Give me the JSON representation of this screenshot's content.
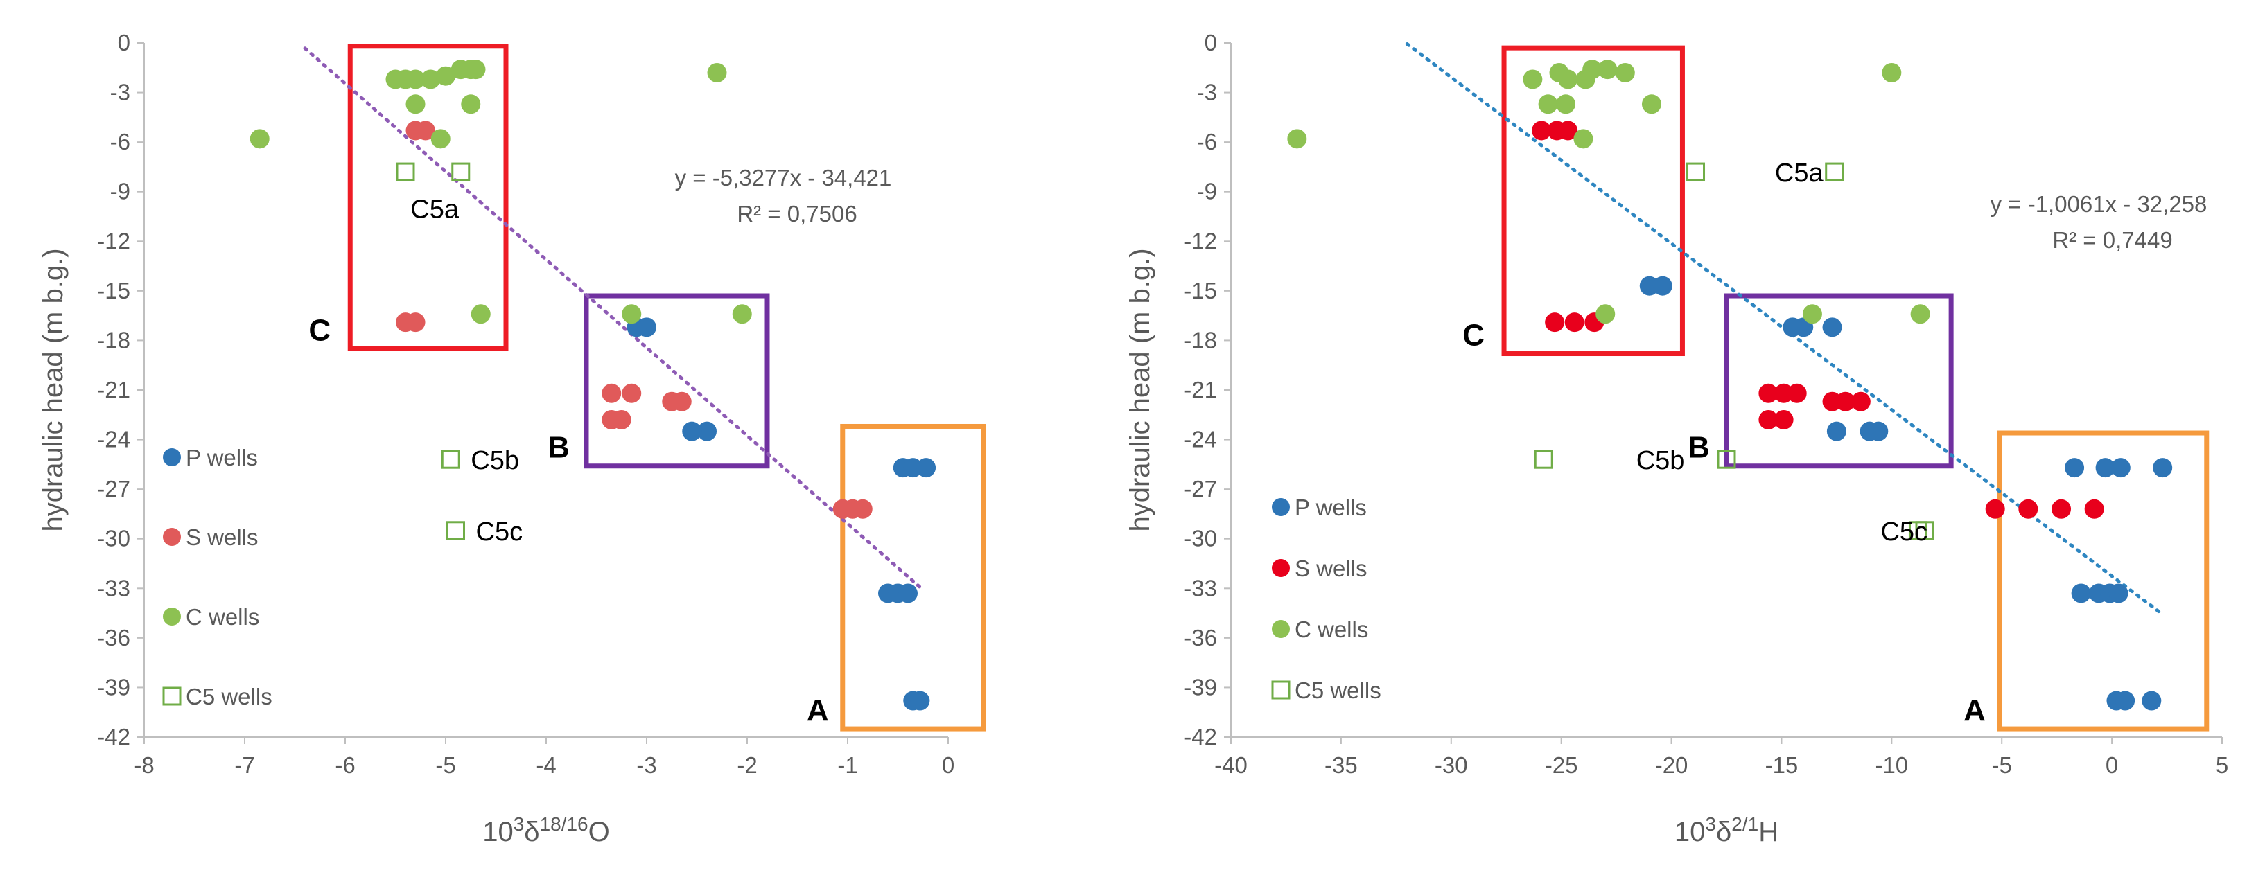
{
  "colors": {
    "p_wells": "#2E75B6",
    "s_wells": "#E05A5A",
    "s_wells_right": "#E8001C",
    "c_wells": "#8DC152",
    "c5_wells": "#70AD47",
    "box_a": "#F59A3D",
    "box_b": "#7030A0",
    "box_c": "#EE1C25",
    "trend_left": "#8E5BB5",
    "trend_right": "#2E86C1",
    "axis": "#BFBFBF",
    "text": "#595959"
  },
  "chart_data": [
    {
      "type": "scatter",
      "ylabel": "hydraulic head (m b.g.)",
      "xlabel": "10³δ18/16O",
      "xlim": [
        -8,
        0
      ],
      "ylim": [
        -42,
        0
      ],
      "xticks": [
        "-8",
        "-7",
        "-6",
        "-5",
        "-4",
        "-3",
        "-2",
        "-1",
        "0"
      ],
      "yticks": [
        "0",
        "-3",
        "-6",
        "-9",
        "-12",
        "-15",
        "-18",
        "-21",
        "-24",
        "-27",
        "-30",
        "-33",
        "-36",
        "-39",
        "-42"
      ],
      "legend": {
        "position": "left",
        "entries": [
          "P wells",
          "S wells",
          "C wells",
          "C5 wells"
        ]
      },
      "trendline": {
        "equation": "y = -5,3277x - 34,421",
        "r2": "R² = 0,7506",
        "slope": -5.3277,
        "intercept": -34.421,
        "x_from": -6.4,
        "x_to": -0.25
      },
      "series": [
        {
          "name": "P wells",
          "points": [
            [
              -3.0,
              -17.2
            ],
            [
              -3.1,
              -17.2
            ],
            [
              -2.4,
              -23.5
            ],
            [
              -2.55,
              -23.5
            ],
            [
              -0.45,
              -25.7
            ],
            [
              -0.35,
              -25.7
            ],
            [
              -0.22,
              -25.7
            ],
            [
              -0.6,
              -33.3
            ],
            [
              -0.5,
              -33.3
            ],
            [
              -0.4,
              -33.3
            ],
            [
              -0.35,
              -39.8
            ],
            [
              -0.28,
              -39.8
            ]
          ]
        },
        {
          "name": "S wells",
          "points": [
            [
              -5.3,
              -5.3
            ],
            [
              -5.2,
              -5.3
            ],
            [
              -5.4,
              -16.9
            ],
            [
              -5.3,
              -16.9
            ],
            [
              -3.35,
              -21.2
            ],
            [
              -3.15,
              -21.2
            ],
            [
              -2.75,
              -21.7
            ],
            [
              -2.65,
              -21.7
            ],
            [
              -3.35,
              -22.8
            ],
            [
              -3.25,
              -22.8
            ],
            [
              -1.05,
              -28.2
            ],
            [
              -0.95,
              -28.2
            ],
            [
              -0.85,
              -28.2
            ]
          ]
        },
        {
          "name": "C wells",
          "points": [
            [
              -6.85,
              -5.8
            ],
            [
              -5.5,
              -2.2
            ],
            [
              -5.4,
              -2.2
            ],
            [
              -5.3,
              -2.2
            ],
            [
              -5.15,
              -2.2
            ],
            [
              -5.0,
              -2.0
            ],
            [
              -4.85,
              -1.6
            ],
            [
              -4.75,
              -1.6
            ],
            [
              -4.7,
              -1.6
            ],
            [
              -5.3,
              -3.7
            ],
            [
              -4.75,
              -3.7
            ],
            [
              -5.05,
              -5.8
            ],
            [
              -4.65,
              -16.4
            ],
            [
              -3.15,
              -16.4
            ],
            [
              -2.05,
              -16.4
            ],
            [
              -2.3,
              -1.8
            ]
          ]
        },
        {
          "name": "C5 wells",
          "points": [
            [
              -5.4,
              -7.8
            ],
            [
              -4.85,
              -7.8
            ],
            [
              -4.95,
              -25.2
            ],
            [
              -4.9,
              -29.5
            ]
          ]
        }
      ],
      "boxes": [
        {
          "label": "A",
          "x1": -1.05,
          "x2": 0.35,
          "y1": -23.2,
          "y2": -41.5
        },
        {
          "label": "B",
          "x1": -3.6,
          "x2": -1.8,
          "y1": -15.3,
          "y2": -25.6
        },
        {
          "label": "C",
          "x1": -5.95,
          "x2": -4.4,
          "y1": -0.2,
          "y2": -18.5
        }
      ],
      "point_labels": [
        {
          "text": "C5a",
          "x": -5.35,
          "y": -10.0
        },
        {
          "text": "C5b",
          "x": -4.75,
          "y": -25.2
        },
        {
          "text": "C5c",
          "x": -4.7,
          "y": -29.5
        }
      ]
    },
    {
      "type": "scatter",
      "ylabel": "hydraulic head (m b.g.)",
      "xlabel": "10³δ2/1H",
      "xlim": [
        -40,
        5
      ],
      "ylim": [
        -42,
        0
      ],
      "xticks": [
        "-40",
        "-35",
        "-30",
        "-25",
        "-20",
        "-15",
        "-10",
        "-5",
        "0",
        "5"
      ],
      "yticks": [
        "0",
        "-3",
        "-6",
        "-9",
        "-12",
        "-15",
        "-18",
        "-21",
        "-24",
        "-27",
        "-30",
        "-33",
        "-36",
        "-39",
        "-42"
      ],
      "legend": {
        "position": "left",
        "entries": [
          "P wells",
          "S wells",
          "C wells",
          "C5 wells"
        ]
      },
      "trendline": {
        "equation": "y = -1,0061x - 32,258",
        "r2": "R² = 0,7449",
        "slope": -1.0061,
        "intercept": -32.258,
        "x_from": -32.0,
        "x_to": 2.2
      },
      "series": [
        {
          "name": "P wells",
          "points": [
            [
              -21.0,
              -14.7
            ],
            [
              -20.4,
              -14.7
            ],
            [
              -14.5,
              -17.2
            ],
            [
              -14.0,
              -17.2
            ],
            [
              -12.7,
              -17.2
            ],
            [
              -12.5,
              -23.5
            ],
            [
              -11.0,
              -23.5
            ],
            [
              -10.6,
              -23.5
            ],
            [
              -1.7,
              -25.7
            ],
            [
              -0.3,
              -25.7
            ],
            [
              0.4,
              -25.7
            ],
            [
              2.3,
              -25.7
            ],
            [
              -1.4,
              -33.3
            ],
            [
              -0.6,
              -33.3
            ],
            [
              -0.1,
              -33.3
            ],
            [
              0.3,
              -33.3
            ],
            [
              0.2,
              -39.8
            ],
            [
              0.6,
              -39.8
            ],
            [
              1.8,
              -39.8
            ]
          ]
        },
        {
          "name": "S wells",
          "points": [
            [
              -25.9,
              -5.3
            ],
            [
              -25.2,
              -5.3
            ],
            [
              -24.7,
              -5.3
            ],
            [
              -25.3,
              -16.9
            ],
            [
              -24.4,
              -16.9
            ],
            [
              -23.5,
              -16.9
            ],
            [
              -15.6,
              -21.2
            ],
            [
              -14.9,
              -21.2
            ],
            [
              -14.3,
              -21.2
            ],
            [
              -12.7,
              -21.7
            ],
            [
              -12.1,
              -21.7
            ],
            [
              -11.4,
              -21.7
            ],
            [
              -15.6,
              -22.8
            ],
            [
              -14.9,
              -22.8
            ],
            [
              -5.3,
              -28.2
            ],
            [
              -3.8,
              -28.2
            ],
            [
              -2.3,
              -28.2
            ],
            [
              -0.8,
              -28.2
            ]
          ]
        },
        {
          "name": "C wells",
          "points": [
            [
              -37.0,
              -5.8
            ],
            [
              -26.3,
              -2.2
            ],
            [
              -25.1,
              -1.8
            ],
            [
              -24.7,
              -2.2
            ],
            [
              -23.9,
              -2.2
            ],
            [
              -23.6,
              -1.6
            ],
            [
              -22.9,
              -1.6
            ],
            [
              -22.1,
              -1.8
            ],
            [
              -25.6,
              -3.7
            ],
            [
              -24.8,
              -3.7
            ],
            [
              -20.9,
              -3.7
            ],
            [
              -24.0,
              -5.8
            ],
            [
              -23.0,
              -16.4
            ],
            [
              -13.6,
              -16.4
            ],
            [
              -8.7,
              -16.4
            ],
            [
              -10.0,
              -1.8
            ]
          ]
        },
        {
          "name": "C5 wells",
          "points": [
            [
              -18.9,
              -7.8
            ],
            [
              -12.6,
              -7.8
            ],
            [
              -25.8,
              -25.2
            ],
            [
              -17.5,
              -25.2
            ],
            [
              -8.8,
              -29.5
            ],
            [
              -8.5,
              -29.5
            ]
          ]
        }
      ],
      "boxes": [
        {
          "label": "A",
          "x1": -5.1,
          "x2": 4.3,
          "y1": -23.6,
          "y2": -41.5
        },
        {
          "label": "B",
          "x1": -17.5,
          "x2": -7.3,
          "y1": -15.3,
          "y2": -25.6
        },
        {
          "label": "C",
          "x1": -27.6,
          "x2": -19.5,
          "y1": -0.3,
          "y2": -18.8
        }
      ],
      "point_labels": [
        {
          "text": "C5a",
          "x": -15.3,
          "y": -7.8
        },
        {
          "text": "C5b",
          "x": -21.6,
          "y": -25.2
        },
        {
          "text": "C5c",
          "x": -10.5,
          "y": -29.5
        }
      ]
    }
  ]
}
